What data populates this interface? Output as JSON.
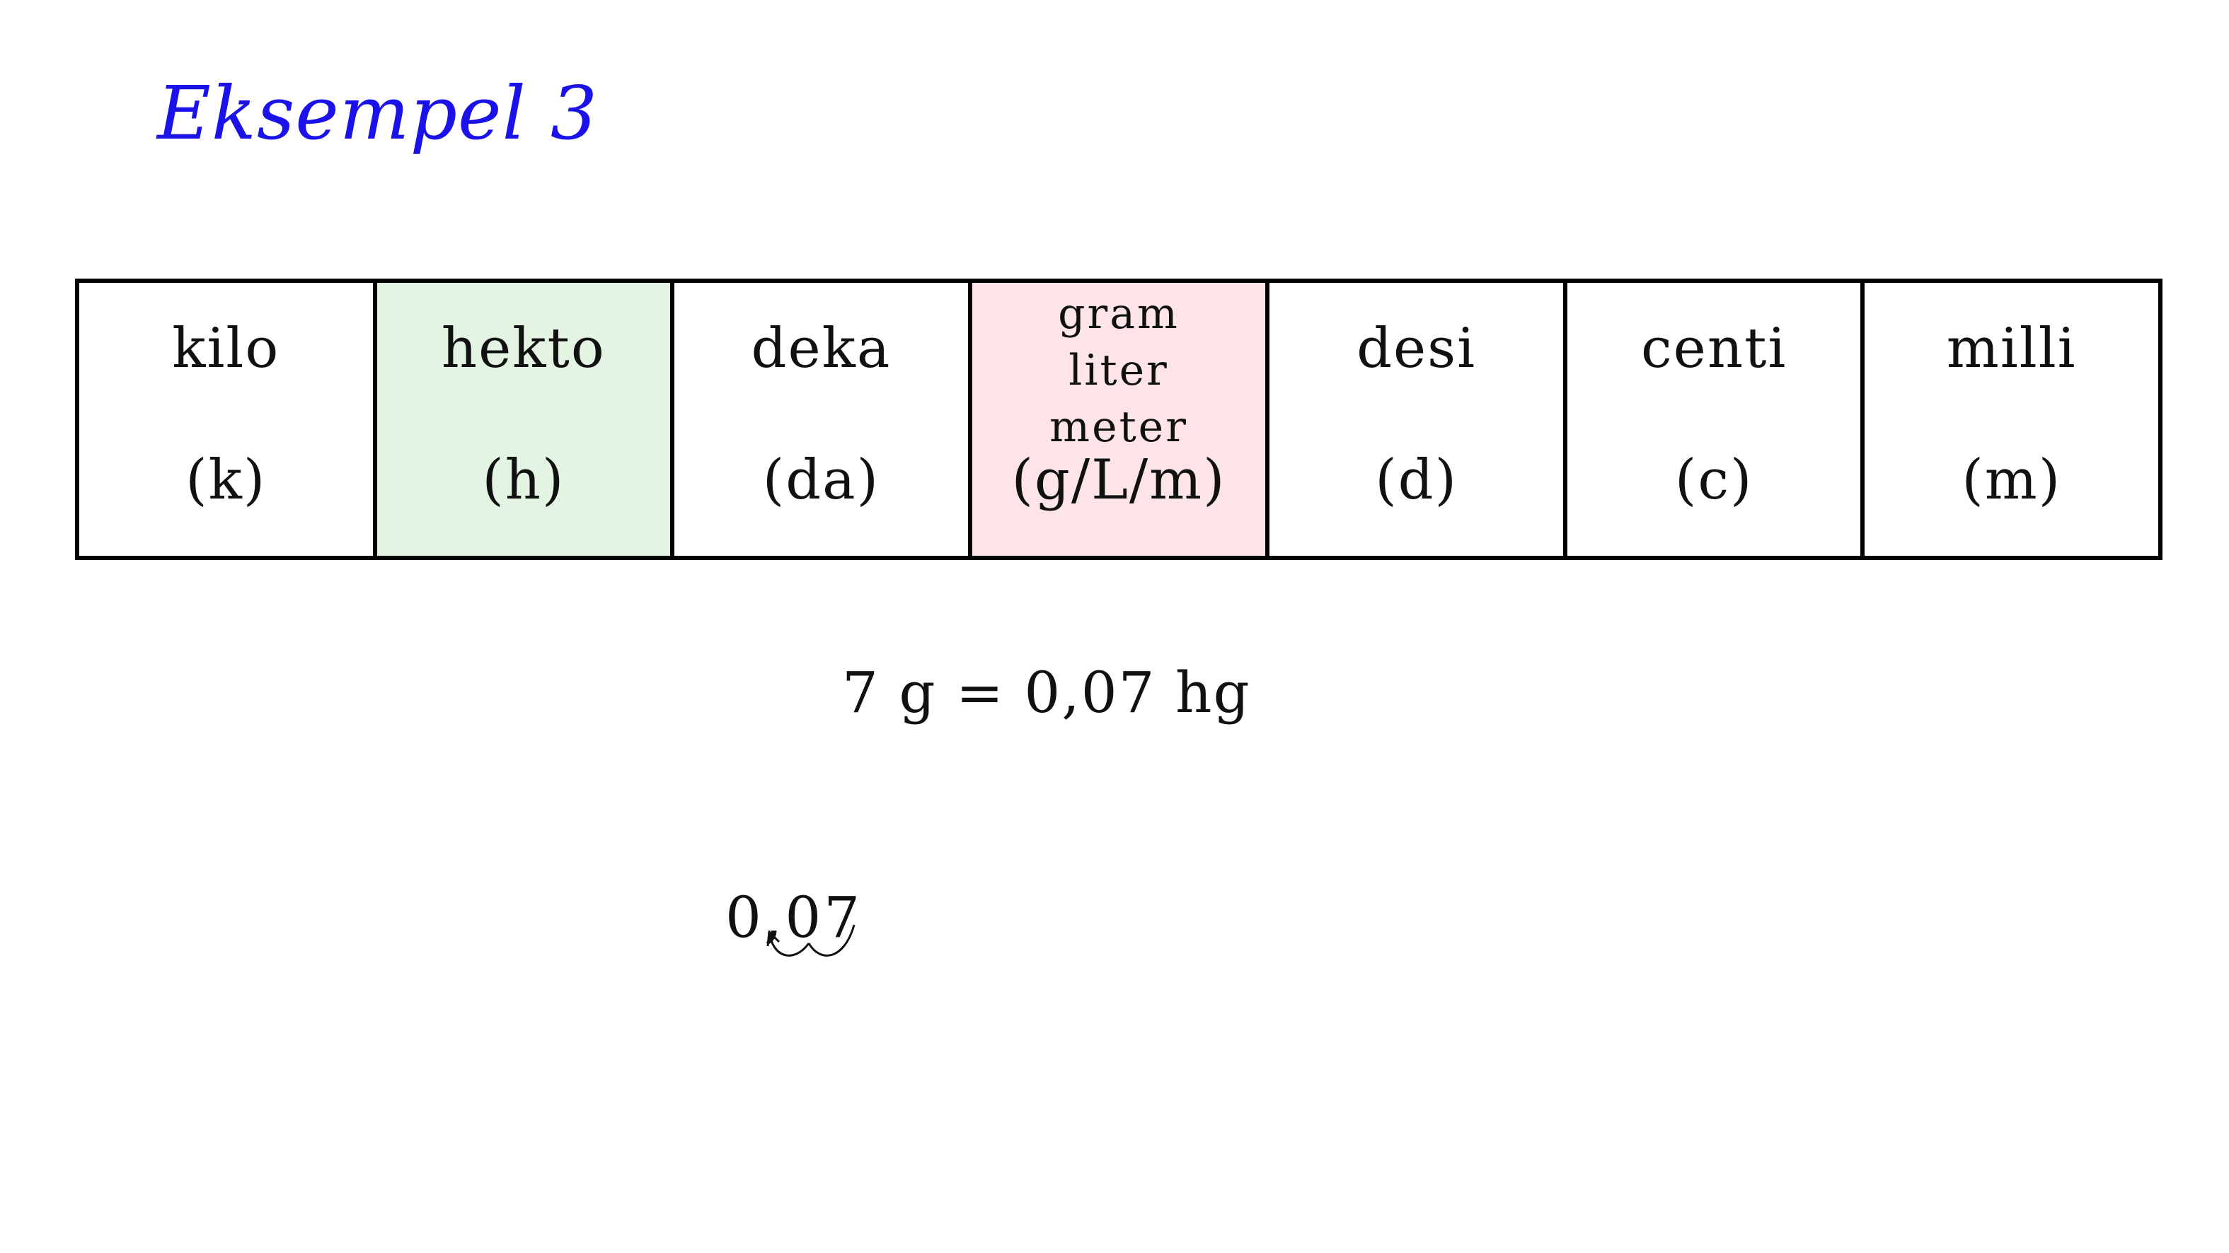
{
  "title": "Eksempel 3",
  "colors": {
    "highlight_target": "#e3f5e2",
    "highlight_base": "#fde4e7",
    "title": "#1a12e8",
    "border": "#000000"
  },
  "prefixes": [
    {
      "name": "kilo",
      "abbr": "(k)",
      "highlight": "none"
    },
    {
      "name": "hekto",
      "abbr": "(h)",
      "highlight": "target"
    },
    {
      "name": "deka",
      "abbr": "(da)",
      "highlight": "none"
    },
    {
      "names": [
        "gram",
        "liter",
        "meter"
      ],
      "abbr": "(g/L/m)",
      "highlight": "base"
    },
    {
      "name": "desi",
      "abbr": "(d)",
      "highlight": "none"
    },
    {
      "name": "centi",
      "abbr": "(c)",
      "highlight": "none"
    },
    {
      "name": "milli",
      "abbr": "(m)",
      "highlight": "none"
    }
  ],
  "equation": "7 g = 0,07 hg",
  "shift_demo": {
    "number": "0,07",
    "hops": 2,
    "direction": "left"
  }
}
